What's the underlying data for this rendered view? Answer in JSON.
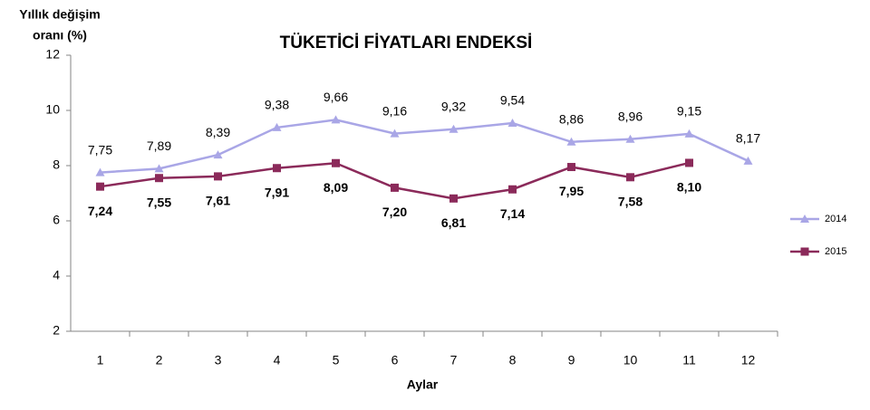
{
  "chart_data": {
    "type": "line",
    "title": "TÜKETİCİ FİYATLARI ENDEKSİ",
    "ylabel": [
      "Yıllık değişim",
      "oranı (%)"
    ],
    "xlabel": "Aylar",
    "categories": [
      "1",
      "2",
      "3",
      "4",
      "5",
      "6",
      "7",
      "8",
      "9",
      "10",
      "11",
      "12"
    ],
    "series": [
      {
        "name": "2014",
        "color": "#a9a6e6",
        "marker": "triangle",
        "label_position": "above",
        "values": [
          7.75,
          7.89,
          8.39,
          9.38,
          9.66,
          9.16,
          9.32,
          9.54,
          8.86,
          8.96,
          9.15,
          8.17
        ],
        "value_labels": [
          "7,75",
          "7,89",
          "8,39",
          "9,38",
          "9,66",
          "9,16",
          "9,32",
          "9,54",
          "8,86",
          "8,96",
          "9,15",
          "8,17"
        ]
      },
      {
        "name": "2015",
        "color": "#8b2a5a",
        "marker": "square",
        "label_position": "below",
        "values": [
          7.24,
          7.55,
          7.61,
          7.91,
          8.09,
          7.2,
          6.81,
          7.14,
          7.95,
          7.58,
          8.1,
          null
        ],
        "value_labels": [
          "7,24",
          "7,55",
          "7,61",
          "7,91",
          "8,09",
          "7,20",
          "6,81",
          "7,14",
          "7,95",
          "7,58",
          "8,10",
          null
        ]
      }
    ],
    "ylim": [
      2,
      12
    ],
    "yticks": [
      2,
      4,
      6,
      8,
      10,
      12
    ],
    "grid": false,
    "legend": "right"
  }
}
